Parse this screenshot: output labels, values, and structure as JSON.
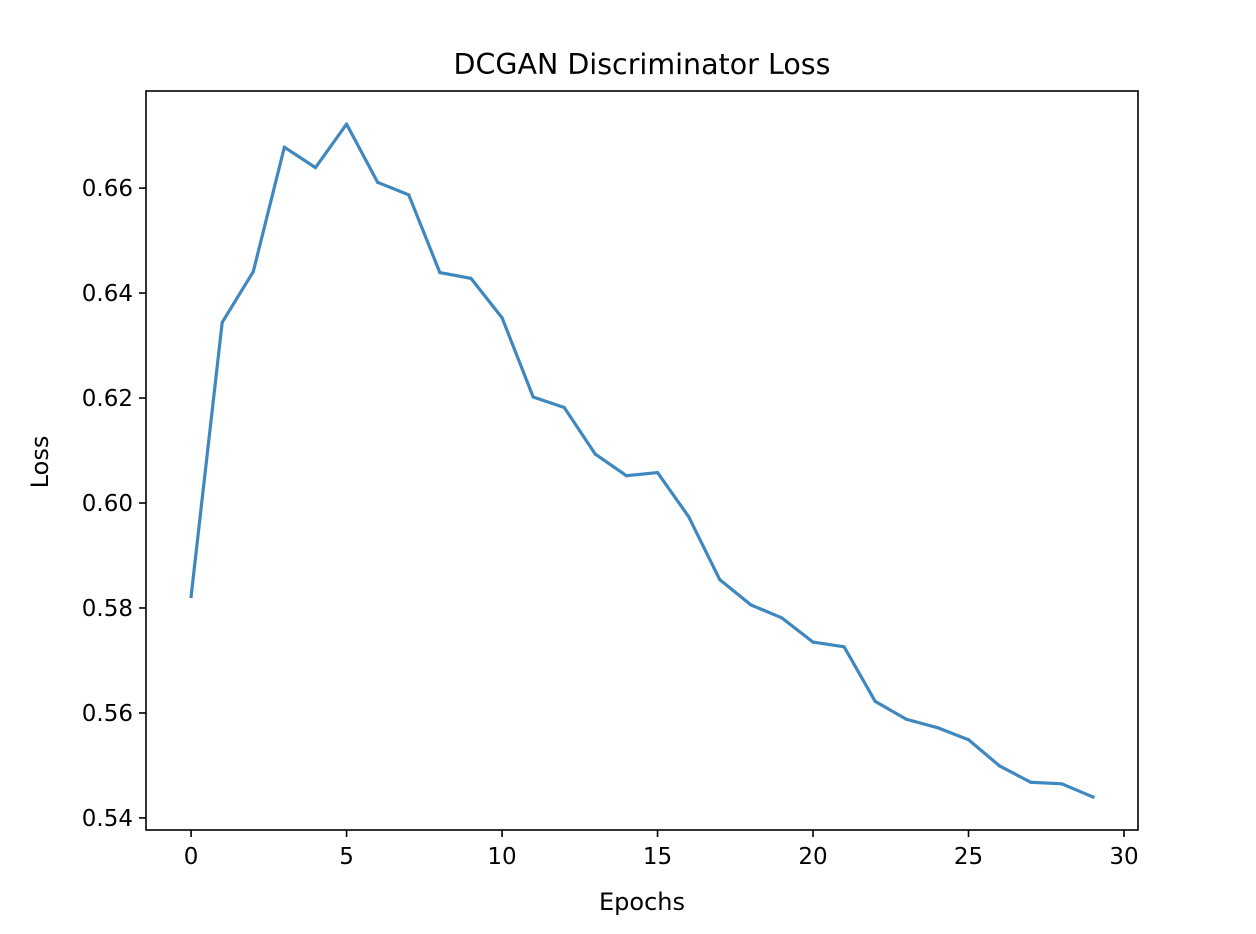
{
  "chart_data": {
    "type": "line",
    "title": "DCGAN Discriminator Loss",
    "xlabel": "Epochs",
    "ylabel": "Loss",
    "xlim": [
      -1.45,
      30.45
    ],
    "ylim": [
      0.5377,
      0.6785
    ],
    "xticks": [
      0,
      5,
      10,
      15,
      20,
      25,
      30
    ],
    "xtick_labels": [
      "0",
      "5",
      "10",
      "15",
      "20",
      "25",
      "30"
    ],
    "yticks": [
      0.54,
      0.56,
      0.58,
      0.6,
      0.62,
      0.64,
      0.66
    ],
    "ytick_labels": [
      "0.54",
      "0.56",
      "0.58",
      "0.60",
      "0.62",
      "0.64",
      "0.66"
    ],
    "grid": false,
    "series": [
      {
        "color": "#3f88bf",
        "x": [
          0,
          1,
          2,
          3,
          4,
          5,
          6,
          7,
          8,
          9,
          10,
          11,
          12,
          13,
          14,
          15,
          16,
          17,
          18,
          19,
          20,
          21,
          22,
          23,
          24,
          25,
          26,
          27,
          28,
          29
        ],
        "y": [
          0.5822,
          0.6344,
          0.6441,
          0.6678,
          0.6639,
          0.6722,
          0.6611,
          0.6587,
          0.6439,
          0.6428,
          0.6353,
          0.6202,
          0.6182,
          0.6093,
          0.6052,
          0.6058,
          0.5974,
          0.5854,
          0.5806,
          0.5781,
          0.5735,
          0.5726,
          0.5622,
          0.5588,
          0.5572,
          0.5549,
          0.5499,
          0.5468,
          0.5465,
          0.544
        ]
      }
    ]
  }
}
